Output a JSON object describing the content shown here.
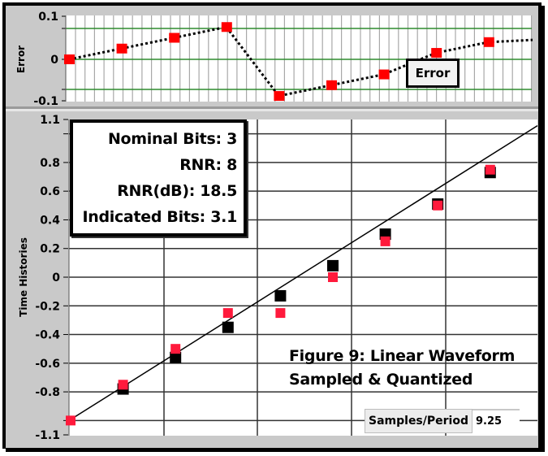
{
  "chart_data": [
    {
      "type": "scatter",
      "name": "error-chart",
      "title": "",
      "ylabel": "Error",
      "xlabel": "",
      "ylim": [
        -0.1,
        0.1
      ],
      "yticks": [
        "0.1",
        "0",
        "-0.1"
      ],
      "reference_lines": [
        0.075,
        0,
        -0.075
      ],
      "grid": {
        "vertical": true,
        "horizontal_color": "#2e8b2e",
        "vertical_color": "#a8a8a8"
      },
      "legend": {
        "label": "Error",
        "position": "inside-lower-right"
      },
      "x": [
        0,
        1,
        2,
        3,
        4,
        5,
        6,
        7,
        8
      ],
      "series": [
        {
          "name": "Error",
          "marker": "square",
          "color": "#ff0000",
          "line": "dotted",
          "values": [
            0.0,
            0.025,
            0.05,
            0.075,
            -0.085,
            -0.06,
            -0.035,
            0.015,
            0.04
          ]
        }
      ]
    },
    {
      "type": "scatter",
      "name": "time-histories-chart",
      "title": "",
      "ylabel": "Time Histories",
      "xlabel": "",
      "ylim": [
        -1.1,
        1.1
      ],
      "yticks": [
        "1.1",
        "0.8",
        "0.6",
        "0.4",
        "0.2",
        "0",
        "-0.2",
        "-0.4",
        "-0.6",
        "-0.8",
        "-1.1"
      ],
      "grid": {
        "horizontal_step": 0.2,
        "vertical_lines": 4
      },
      "x": [
        0,
        1,
        2,
        3,
        4,
        5,
        6,
        7,
        8
      ],
      "series": [
        {
          "name": "Continuous",
          "type": "line",
          "color": "#000000",
          "start": [
            0,
            -1.0
          ],
          "end": [
            9.25,
            1.0
          ]
        },
        {
          "name": "Sampled",
          "marker": "square",
          "color": "#000000",
          "values": [
            -1.0,
            -0.78,
            -0.56,
            -0.35,
            -0.13,
            0.08,
            0.3,
            0.51,
            0.73
          ]
        },
        {
          "name": "Quantized",
          "marker": "square",
          "color": "#ff1a3c",
          "values": [
            -1.0,
            -0.75,
            -0.5,
            -0.25,
            -0.25,
            0.0,
            0.25,
            0.5,
            0.75
          ]
        }
      ]
    }
  ],
  "error_chart": {
    "ylabel": "Error",
    "ticks": {
      "top": "0.1",
      "mid": "0",
      "bottom": "-0.1"
    },
    "legend_label": "Error"
  },
  "main_chart": {
    "ylabel": "Time Histories",
    "ticks": [
      "1.1",
      "0.8",
      "0.6",
      "0.4",
      "0.2",
      "0",
      "-0.2",
      "-0.4",
      "-0.6",
      "-0.8",
      "-1.1"
    ]
  },
  "info": {
    "nominal_bits": "Nominal Bits: 3",
    "rnr": "RNR: 8",
    "rnr_db": "RNR(dB): 18.5",
    "indicated_bits": "Indicated Bits: 3.1"
  },
  "caption": {
    "line1": "Figure 9: Linear Waveform",
    "line2": "Sampled & Quantized"
  },
  "samples_per_period": {
    "label": "Samples/Period",
    "value": "9.25"
  },
  "colors": {
    "quantized": "#ff1a3c",
    "error_marker": "#ff0000",
    "sampled": "#000000",
    "reference_green": "#2e8b2e",
    "panel_gray": "#c9c9c9"
  }
}
